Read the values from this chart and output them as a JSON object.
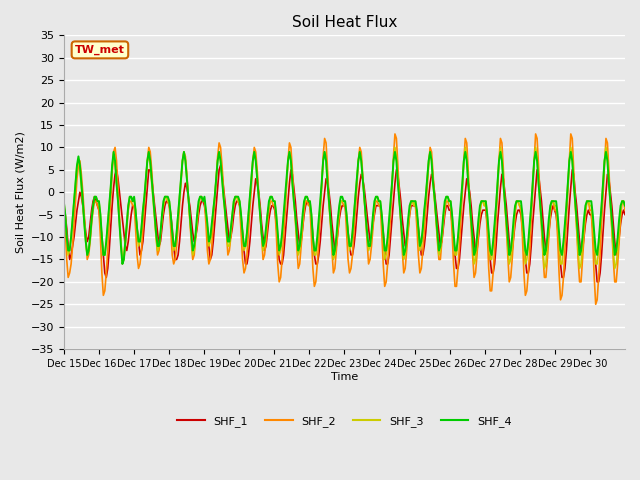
{
  "title": "Soil Heat Flux",
  "ylabel": "Soil Heat Flux (W/m2)",
  "xlabel": "Time",
  "ylim": [
    -35,
    35
  ],
  "yticks": [
    -35,
    -30,
    -25,
    -20,
    -15,
    -10,
    -5,
    0,
    5,
    10,
    15,
    20,
    25,
    30,
    35
  ],
  "plot_bg_color": "#e8e8e8",
  "grid_color": "#ffffff",
  "annotation_text": "TW_met",
  "annotation_bg": "#ffffcc",
  "annotation_border": "#cc6600",
  "annotation_text_color": "#cc0000",
  "series_colors": [
    "#cc0000",
    "#ff8800",
    "#cccc00",
    "#00cc00"
  ],
  "series_labels": [
    "SHF_1",
    "SHF_2",
    "SHF_3",
    "SHF_4"
  ],
  "series_linewidths": [
    1.2,
    1.2,
    1.2,
    1.4
  ],
  "xtick_labels": [
    "Dec 15",
    "Dec 16",
    "Dec 17",
    "Dec 18",
    "Dec 19",
    "Dec 20",
    "Dec 21",
    "Dec 22",
    "Dec 23",
    "Dec 24",
    "Dec 25",
    "Dec 26",
    "Dec 27",
    "Dec 28",
    "Dec 29",
    "Dec 30"
  ],
  "n_points_per_day": 24,
  "n_days": 16,
  "shf1": [
    -3,
    -5,
    -8,
    -12,
    -15,
    -14,
    -12,
    -10,
    -7,
    -4,
    -2,
    0,
    -1,
    -3,
    -6,
    -9,
    -11,
    -10,
    -7,
    -4,
    -2,
    -1,
    -2,
    -3,
    -4,
    -7,
    -10,
    -14,
    -18,
    -19,
    -17,
    -13,
    -8,
    -3,
    1,
    4,
    5,
    3,
    0,
    -3,
    -6,
    -9,
    -12,
    -13,
    -11,
    -8,
    -5,
    -3,
    -3,
    -5,
    -8,
    -11,
    -14,
    -13,
    -11,
    -7,
    -3,
    1,
    5,
    5,
    3,
    0,
    -3,
    -6,
    -9,
    -12,
    -11,
    -8,
    -5,
    -3,
    -2,
    -2,
    -3,
    -5,
    -8,
    -12,
    -15,
    -15,
    -14,
    -11,
    -7,
    -3,
    0,
    2,
    1,
    -1,
    -3,
    -6,
    -9,
    -11,
    -10,
    -8,
    -5,
    -3,
    -2,
    -2,
    -3,
    -5,
    -8,
    -12,
    -15,
    -14,
    -11,
    -7,
    -3,
    1,
    5,
    6,
    4,
    1,
    -2,
    -5,
    -8,
    -11,
    -10,
    -8,
    -5,
    -3,
    -2,
    -2,
    -3,
    -6,
    -9,
    -13,
    -16,
    -16,
    -14,
    -11,
    -7,
    -3,
    0,
    3,
    2,
    0,
    -3,
    -7,
    -10,
    -13,
    -12,
    -9,
    -6,
    -4,
    -3,
    -3,
    -4,
    -7,
    -11,
    -15,
    -16,
    -16,
    -14,
    -10,
    -6,
    -2,
    2,
    5,
    4,
    1,
    -2,
    -6,
    -9,
    -12,
    -11,
    -8,
    -5,
    -3,
    -2,
    -2,
    -3,
    -6,
    -10,
    -14,
    -16,
    -16,
    -14,
    -11,
    -7,
    -3,
    0,
    3,
    2,
    0,
    -3,
    -7,
    -10,
    -13,
    -12,
    -9,
    -6,
    -4,
    -3,
    -3,
    -3,
    -6,
    -9,
    -12,
    -14,
    -14,
    -12,
    -9,
    -5,
    -1,
    2,
    4,
    3,
    1,
    -2,
    -5,
    -8,
    -11,
    -10,
    -7,
    -5,
    -3,
    -3,
    -3,
    -3,
    -6,
    -9,
    -13,
    -16,
    -16,
    -14,
    -10,
    -6,
    -2,
    2,
    5,
    4,
    1,
    -2,
    -6,
    -9,
    -12,
    -11,
    -8,
    -5,
    -3,
    -3,
    -3,
    -3,
    -5,
    -8,
    -11,
    -14,
    -14,
    -12,
    -9,
    -5,
    -1,
    2,
    4,
    3,
    0,
    -3,
    -6,
    -9,
    -12,
    -11,
    -8,
    -5,
    -3,
    -3,
    -4,
    -4,
    -7,
    -10,
    -14,
    -17,
    -17,
    -15,
    -11,
    -7,
    -3,
    0,
    3,
    2,
    0,
    -3,
    -7,
    -10,
    -14,
    -13,
    -10,
    -7,
    -5,
    -4,
    -4,
    -4,
    -7,
    -11,
    -15,
    -18,
    -18,
    -16,
    -12,
    -7,
    -3,
    1,
    4,
    3,
    0,
    -3,
    -7,
    -11,
    -14,
    -13,
    -10,
    -7,
    -5,
    -4,
    -4,
    -5,
    -8,
    -11,
    -15,
    -18,
    -18,
    -16,
    -12,
    -7,
    -3,
    1,
    5,
    4,
    1,
    -2,
    -6,
    -10,
    -13,
    -12,
    -9,
    -6,
    -4,
    -3,
    -4,
    -5,
    -8,
    -12,
    -16,
    -19,
    -19,
    -17,
    -13,
    -8,
    -3,
    1,
    5,
    4,
    0,
    -3,
    -7,
    -11,
    -14,
    -13,
    -10,
    -7,
    -5,
    -4,
    -5,
    -5,
    -8,
    -12,
    -16,
    -20,
    -20,
    -18,
    -14,
    -9,
    -4,
    0,
    4,
    3,
    0,
    -3,
    -7,
    -11,
    -14,
    -13,
    -10,
    -7,
    -5,
    -4,
    -5
  ],
  "shf2": [
    -3,
    -8,
    -15,
    -19,
    -18,
    -16,
    -12,
    -7,
    -2,
    3,
    6,
    7,
    4,
    0,
    -5,
    -10,
    -15,
    -14,
    -11,
    -7,
    -4,
    -2,
    -2,
    -3,
    -4,
    -10,
    -18,
    -23,
    -22,
    -18,
    -13,
    -7,
    -2,
    4,
    9,
    10,
    7,
    1,
    -5,
    -11,
    -16,
    -15,
    -12,
    -8,
    -4,
    -2,
    -2,
    -3,
    -3,
    -8,
    -14,
    -17,
    -16,
    -13,
    -8,
    -3,
    2,
    7,
    10,
    9,
    5,
    0,
    -5,
    -10,
    -14,
    -13,
    -10,
    -6,
    -3,
    -1,
    -1,
    -2,
    -3,
    -8,
    -14,
    -16,
    -15,
    -12,
    -8,
    -3,
    2,
    7,
    9,
    8,
    4,
    -1,
    -6,
    -11,
    -15,
    -14,
    -10,
    -7,
    -3,
    -1,
    -1,
    -2,
    -2,
    -7,
    -13,
    -16,
    -15,
    -12,
    -7,
    -2,
    3,
    8,
    11,
    10,
    6,
    1,
    -4,
    -9,
    -14,
    -13,
    -10,
    -6,
    -3,
    -1,
    -1,
    -2,
    -3,
    -9,
    -15,
    -18,
    -17,
    -14,
    -9,
    -4,
    1,
    7,
    10,
    9,
    5,
    0,
    -5,
    -10,
    -15,
    -14,
    -11,
    -7,
    -4,
    -2,
    -2,
    -3,
    -3,
    -9,
    -16,
    -20,
    -19,
    -15,
    -10,
    -5,
    1,
    7,
    11,
    10,
    5,
    -1,
    -6,
    -12,
    -17,
    -16,
    -12,
    -8,
    -4,
    -2,
    -2,
    -3,
    -3,
    -10,
    -17,
    -21,
    -20,
    -16,
    -11,
    -5,
    1,
    8,
    12,
    11,
    5,
    -1,
    -7,
    -13,
    -18,
    -17,
    -13,
    -9,
    -5,
    -2,
    -2,
    -3,
    -3,
    -9,
    -15,
    -18,
    -17,
    -14,
    -9,
    -4,
    1,
    7,
    10,
    9,
    4,
    -1,
    -6,
    -11,
    -16,
    -15,
    -12,
    -8,
    -4,
    -2,
    -2,
    -3,
    -3,
    -9,
    -16,
    -21,
    -20,
    -16,
    -11,
    -5,
    1,
    8,
    13,
    12,
    6,
    -1,
    -7,
    -13,
    -18,
    -17,
    -13,
    -9,
    -5,
    -2,
    -2,
    -3,
    -3,
    -8,
    -14,
    -18,
    -17,
    -13,
    -9,
    -4,
    1,
    6,
    10,
    9,
    4,
    -1,
    -6,
    -11,
    -15,
    -15,
    -11,
    -7,
    -4,
    -2,
    -2,
    -3,
    -3,
    -9,
    -16,
    -21,
    -21,
    -17,
    -12,
    -6,
    0,
    7,
    12,
    11,
    5,
    -2,
    -8,
    -14,
    -19,
    -18,
    -14,
    -9,
    -5,
    -2,
    -2,
    -3,
    -3,
    -9,
    -17,
    -22,
    -22,
    -18,
    -13,
    -6,
    0,
    7,
    12,
    11,
    5,
    -2,
    -8,
    -14,
    -20,
    -19,
    -15,
    -10,
    -5,
    -2,
    -2,
    -3,
    -4,
    -10,
    -18,
    -23,
    -22,
    -18,
    -13,
    -6,
    0,
    7,
    13,
    12,
    6,
    -1,
    -7,
    -14,
    -19,
    -19,
    -15,
    -10,
    -5,
    -2,
    -2,
    -4,
    -4,
    -10,
    -18,
    -24,
    -23,
    -19,
    -13,
    -6,
    0,
    7,
    13,
    12,
    5,
    -2,
    -8,
    -15,
    -20,
    -20,
    -15,
    -10,
    -5,
    -2,
    -2,
    -4,
    -4,
    -11,
    -19,
    -25,
    -24,
    -19,
    -14,
    -7,
    -1,
    6,
    12,
    11,
    5,
    -2,
    -8,
    -15,
    -20,
    -20,
    -16,
    -11,
    -6,
    -2,
    -2,
    -4
  ],
  "shf3": [
    -2,
    -5,
    -10,
    -14,
    -13,
    -10,
    -6,
    -2,
    2,
    6,
    7,
    5,
    1,
    -3,
    -7,
    -11,
    -14,
    -13,
    -10,
    -6,
    -3,
    -1,
    -1,
    -2,
    -2,
    -5,
    -10,
    -14,
    -14,
    -11,
    -7,
    -3,
    1,
    6,
    8,
    6,
    2,
    -2,
    -7,
    -11,
    -15,
    -14,
    -11,
    -7,
    -3,
    -1,
    -1,
    -2,
    -2,
    -4,
    -8,
    -12,
    -11,
    -8,
    -4,
    -1,
    3,
    7,
    8,
    6,
    2,
    -2,
    -6,
    -10,
    -13,
    -12,
    -9,
    -6,
    -3,
    -1,
    -1,
    -2,
    -2,
    -5,
    -9,
    -13,
    -12,
    -9,
    -5,
    -1,
    3,
    7,
    9,
    7,
    3,
    -1,
    -6,
    -10,
    -14,
    -13,
    -10,
    -6,
    -3,
    -1,
    -1,
    -2,
    -2,
    -4,
    -8,
    -12,
    -11,
    -8,
    -4,
    -1,
    3,
    7,
    9,
    7,
    3,
    -1,
    -5,
    -9,
    -12,
    -12,
    -9,
    -5,
    -2,
    -1,
    -1,
    -2,
    -2,
    -5,
    -9,
    -13,
    -12,
    -9,
    -5,
    -1,
    3,
    7,
    9,
    7,
    3,
    -1,
    -5,
    -9,
    -13,
    -12,
    -9,
    -5,
    -3,
    -1,
    -1,
    -2,
    -2,
    -5,
    -10,
    -14,
    -13,
    -10,
    -6,
    -2,
    2,
    7,
    9,
    7,
    2,
    -2,
    -6,
    -10,
    -14,
    -13,
    -10,
    -6,
    -3,
    -1,
    -1,
    -2,
    -2,
    -5,
    -10,
    -14,
    -14,
    -11,
    -7,
    -3,
    2,
    7,
    9,
    7,
    2,
    -3,
    -7,
    -11,
    -15,
    -14,
    -11,
    -7,
    -4,
    -2,
    -2,
    -2,
    -2,
    -5,
    -9,
    -13,
    -12,
    -9,
    -5,
    -1,
    3,
    7,
    9,
    7,
    3,
    -1,
    -5,
    -10,
    -13,
    -12,
    -9,
    -6,
    -3,
    -1,
    -1,
    -2,
    -2,
    -5,
    -10,
    -15,
    -14,
    -11,
    -7,
    -3,
    2,
    7,
    10,
    8,
    3,
    -2,
    -6,
    -11,
    -15,
    -14,
    -11,
    -7,
    -4,
    -2,
    -2,
    -3,
    -2,
    -5,
    -9,
    -13,
    -12,
    -9,
    -5,
    -1,
    3,
    7,
    9,
    7,
    2,
    -2,
    -6,
    -10,
    -14,
    -13,
    -10,
    -6,
    -3,
    -1,
    -1,
    -2,
    -2,
    -5,
    -10,
    -14,
    -14,
    -11,
    -7,
    -3,
    2,
    7,
    10,
    8,
    2,
    -2,
    -7,
    -11,
    -16,
    -15,
    -11,
    -7,
    -4,
    -2,
    -2,
    -3,
    -2,
    -5,
    -10,
    -15,
    -15,
    -12,
    -8,
    -3,
    2,
    7,
    10,
    8,
    2,
    -3,
    -7,
    -12,
    -16,
    -15,
    -12,
    -8,
    -4,
    -2,
    -2,
    -3,
    -3,
    -6,
    -11,
    -16,
    -15,
    -12,
    -8,
    -3,
    2,
    7,
    10,
    8,
    2,
    -3,
    -8,
    -13,
    -17,
    -16,
    -12,
    -8,
    -4,
    -2,
    -2,
    -3,
    -3,
    -6,
    -11,
    -16,
    -16,
    -12,
    -8,
    -3,
    2,
    7,
    10,
    8,
    2,
    -3,
    -8,
    -13,
    -17,
    -16,
    -12,
    -8,
    -4,
    -2,
    -2,
    -3,
    -3,
    -6,
    -11,
    -16,
    -16,
    -13,
    -8,
    -3,
    2,
    7,
    10,
    8,
    2,
    -3,
    -8,
    -13,
    -17,
    -16,
    -13,
    -8,
    -4,
    -2,
    -2,
    -3
  ],
  "shf4": [
    -2,
    -5,
    -10,
    -13,
    -13,
    -10,
    -6,
    -2,
    2,
    6,
    8,
    6,
    2,
    -2,
    -7,
    -11,
    -14,
    -13,
    -10,
    -6,
    -3,
    -1,
    -1,
    -2,
    -2,
    -5,
    -10,
    -14,
    -14,
    -11,
    -7,
    -3,
    1,
    6,
    9,
    7,
    2,
    -2,
    -7,
    -12,
    -16,
    -15,
    -11,
    -7,
    -3,
    -1,
    -1,
    -2,
    -1,
    -4,
    -8,
    -11,
    -11,
    -8,
    -4,
    -1,
    3,
    7,
    9,
    7,
    3,
    -1,
    -5,
    -9,
    -12,
    -12,
    -9,
    -5,
    -2,
    -1,
    -1,
    -1,
    -2,
    -5,
    -9,
    -12,
    -12,
    -9,
    -5,
    -1,
    3,
    7,
    9,
    7,
    3,
    -1,
    -5,
    -9,
    -13,
    -12,
    -9,
    -5,
    -2,
    -1,
    -1,
    -2,
    -1,
    -4,
    -7,
    -11,
    -10,
    -7,
    -4,
    -1,
    3,
    7,
    9,
    7,
    3,
    -1,
    -4,
    -8,
    -11,
    -11,
    -8,
    -5,
    -2,
    -1,
    -1,
    -1,
    -2,
    -5,
    -9,
    -12,
    -12,
    -9,
    -5,
    -1,
    3,
    7,
    9,
    7,
    3,
    -1,
    -5,
    -9,
    -12,
    -11,
    -8,
    -5,
    -2,
    -1,
    -1,
    -2,
    -2,
    -5,
    -9,
    -13,
    -12,
    -9,
    -5,
    -1,
    3,
    7,
    9,
    7,
    2,
    -2,
    -5,
    -9,
    -13,
    -12,
    -9,
    -5,
    -2,
    -1,
    -1,
    -2,
    -2,
    -5,
    -10,
    -13,
    -13,
    -10,
    -6,
    -2,
    2,
    7,
    9,
    7,
    2,
    -2,
    -6,
    -10,
    -14,
    -13,
    -10,
    -6,
    -3,
    -1,
    -1,
    -2,
    -2,
    -5,
    -9,
    -12,
    -12,
    -9,
    -5,
    -1,
    3,
    7,
    9,
    7,
    3,
    -1,
    -5,
    -9,
    -12,
    -12,
    -9,
    -5,
    -2,
    -1,
    -1,
    -2,
    -2,
    -5,
    -9,
    -13,
    -13,
    -10,
    -6,
    -2,
    2,
    7,
    9,
    7,
    2,
    -2,
    -6,
    -10,
    -14,
    -13,
    -10,
    -6,
    -3,
    -2,
    -2,
    -2,
    -2,
    -4,
    -8,
    -12,
    -11,
    -8,
    -4,
    -1,
    3,
    7,
    9,
    7,
    2,
    -1,
    -5,
    -9,
    -13,
    -12,
    -9,
    -5,
    -2,
    -1,
    -1,
    -2,
    -2,
    -5,
    -9,
    -13,
    -13,
    -10,
    -6,
    -2,
    2,
    7,
    9,
    7,
    2,
    -2,
    -6,
    -10,
    -14,
    -13,
    -10,
    -6,
    -3,
    -2,
    -2,
    -2,
    -2,
    -5,
    -9,
    -13,
    -14,
    -11,
    -7,
    -3,
    2,
    7,
    9,
    7,
    2,
    -2,
    -6,
    -10,
    -14,
    -13,
    -10,
    -6,
    -3,
    -2,
    -2,
    -2,
    -2,
    -5,
    -9,
    -13,
    -14,
    -11,
    -7,
    -3,
    2,
    7,
    9,
    7,
    2,
    -2,
    -6,
    -10,
    -14,
    -13,
    -10,
    -6,
    -3,
    -2,
    -2,
    -2,
    -2,
    -5,
    -9,
    -13,
    -14,
    -11,
    -7,
    -3,
    2,
    7,
    9,
    7,
    2,
    -2,
    -6,
    -10,
    -14,
    -13,
    -10,
    -6,
    -3,
    -2,
    -2,
    -2,
    -2,
    -5,
    -9,
    -13,
    -14,
    -11,
    -7,
    -3,
    2,
    7,
    9,
    7,
    2,
    -2,
    -6,
    -10,
    -14,
    -13,
    -10,
    -6,
    -3,
    -2,
    -2,
    -3
  ]
}
